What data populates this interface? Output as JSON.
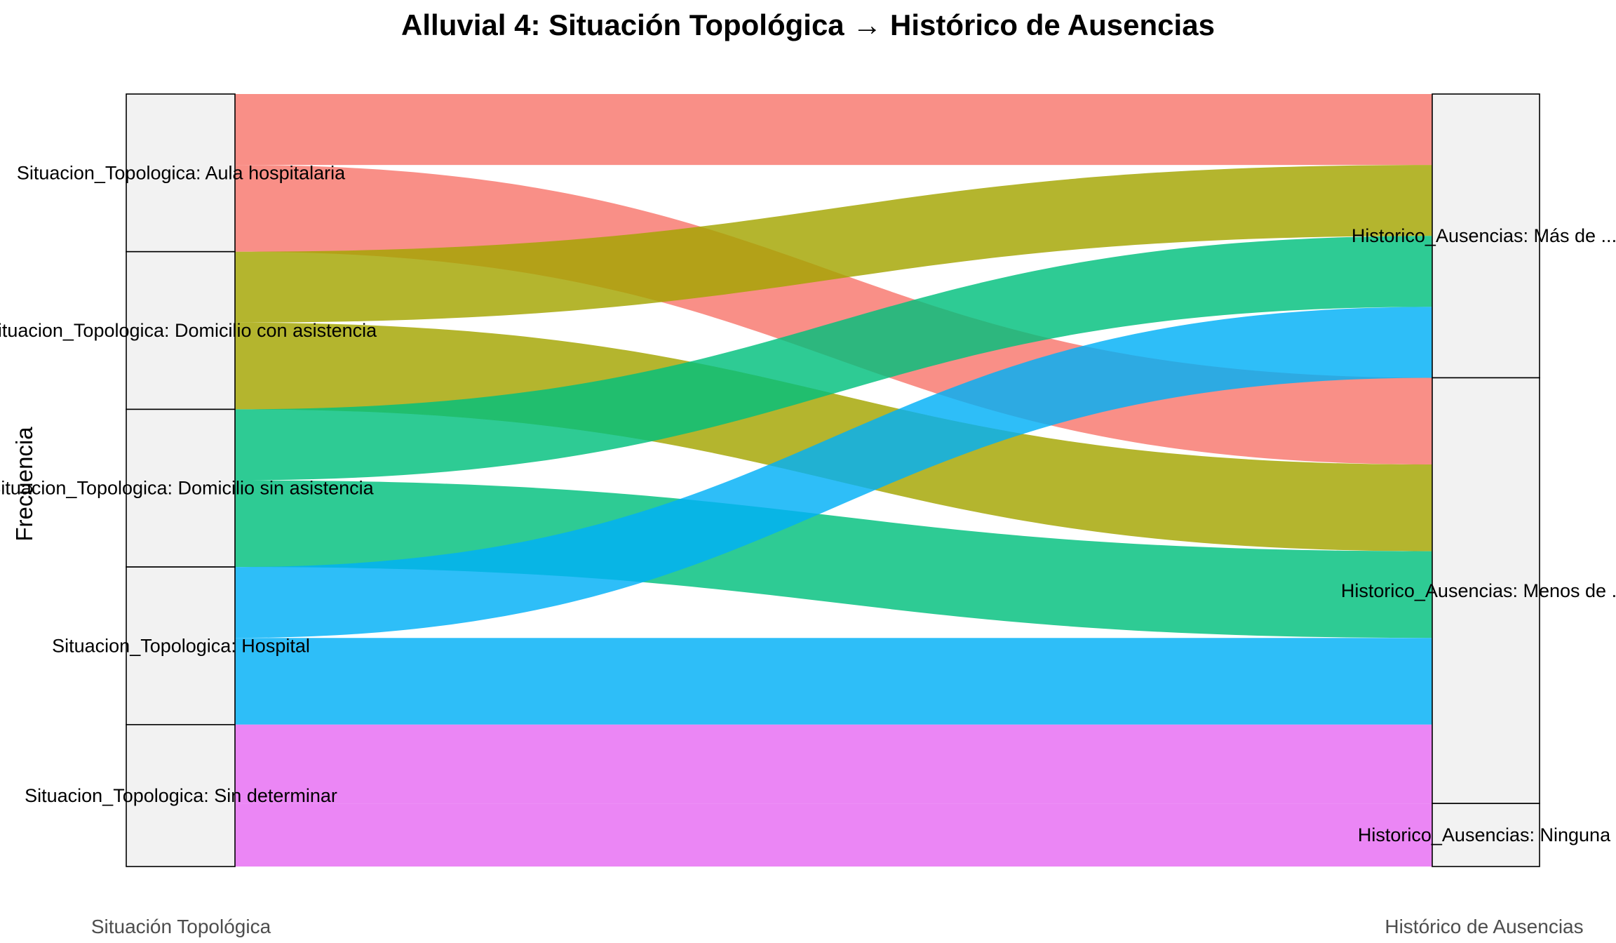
{
  "chart_data": {
    "type": "alluvial",
    "title": "Alluvial 4: Situación Topológica → Histórico de Ausencias",
    "ylabel": "Frecuencia",
    "axes": [
      {
        "name": "Situación Topológica",
        "strata": [
          {
            "label": "Situacion_Topologica: Aula hospitalaria",
            "value": 2
          },
          {
            "label": "Situacion_Topologica: Domicilio con asistencia",
            "value": 2
          },
          {
            "label": "Situacion_Topologica: Domicilio sin asistencia",
            "value": 2
          },
          {
            "label": "Situacion_Topologica: Hospital",
            "value": 2
          },
          {
            "label": "Situacion_Topologica: Sin determinar",
            "value": 1.8
          }
        ]
      },
      {
        "name": "Histórico de Ausencias",
        "strata": [
          {
            "label": "Historico_Ausencias: Más de ...",
            "value": 3.6
          },
          {
            "label": "Historico_Ausencias: Menos de ...",
            "value": 5.4
          },
          {
            "label": "Historico_Ausencias: Ninguna",
            "value": 0.8
          }
        ]
      }
    ],
    "flows": [
      {
        "from": 0,
        "to": 0,
        "value": 0.9,
        "color": "#F8766D"
      },
      {
        "from": 0,
        "to": 1,
        "value": 1.1,
        "color": "#F8766D"
      },
      {
        "from": 1,
        "to": 0,
        "value": 0.9,
        "color": "#A3A500"
      },
      {
        "from": 1,
        "to": 1,
        "value": 1.1,
        "color": "#A3A500"
      },
      {
        "from": 2,
        "to": 0,
        "value": 0.9,
        "color": "#00BF7D"
      },
      {
        "from": 2,
        "to": 1,
        "value": 1.1,
        "color": "#00BF7D"
      },
      {
        "from": 3,
        "to": 0,
        "value": 0.9,
        "color": "#00B0F6"
      },
      {
        "from": 3,
        "to": 1,
        "value": 1.1,
        "color": "#00B0F6"
      },
      {
        "from": 4,
        "to": 1,
        "value": 1.0,
        "color": "#E76BF3"
      },
      {
        "from": 4,
        "to": 2,
        "value": 0.8,
        "color": "#E76BF3"
      }
    ]
  }
}
